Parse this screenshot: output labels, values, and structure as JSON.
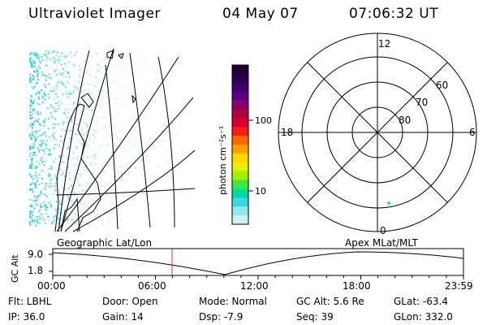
{
  "header": {
    "instrument": "Ultraviolet Imager",
    "date": "04 May 07",
    "time": "07:06:32 UT"
  },
  "colorbar": {
    "label": "photon cm⁻²s⁻¹",
    "ticks": [
      "100",
      "10"
    ],
    "colors": [
      "#1a0033",
      "#2a0050",
      "#3d0070",
      "#5a0080",
      "#8a0070",
      "#b00040",
      "#d8002a",
      "#ff1a1a",
      "#ff6a00",
      "#ffa000",
      "#ffd800",
      "#e8f000",
      "#9cf000",
      "#3ce83c",
      "#00d8a0",
      "#38d8e0",
      "#90e8f0",
      "#d0f0f8"
    ]
  },
  "polar_plot": {
    "mlt_labels": {
      "top": "12",
      "bottom": "0",
      "left": "18",
      "right": "6"
    },
    "lat_labels": [
      "60",
      "70",
      "80"
    ]
  },
  "coords": {
    "left": "Geographic Lat/Lon",
    "right": "Apex  MLat/MLT"
  },
  "altitude_plot": {
    "axis_label": "GC Alt",
    "y_ticks": [
      "9.0",
      "1.8"
    ],
    "x_ticks": [
      "00:00",
      "06:00",
      "12:00",
      "18:00",
      "23:59"
    ],
    "current_time_marker": "07:06"
  },
  "info": {
    "row1": {
      "flt": "Flt: LBHL",
      "door": "Door: Open",
      "mode": "Mode: Normal",
      "gcalt": "GC Alt: 5.6 Re",
      "glat": "GLat: -63.4"
    },
    "row2": {
      "ip": "IP: 36.0",
      "gain": "Gain: 14",
      "dsp": "Dsp:    -7.9",
      "seq": "Seq: 39",
      "glon": "GLon: 332.0"
    }
  }
}
